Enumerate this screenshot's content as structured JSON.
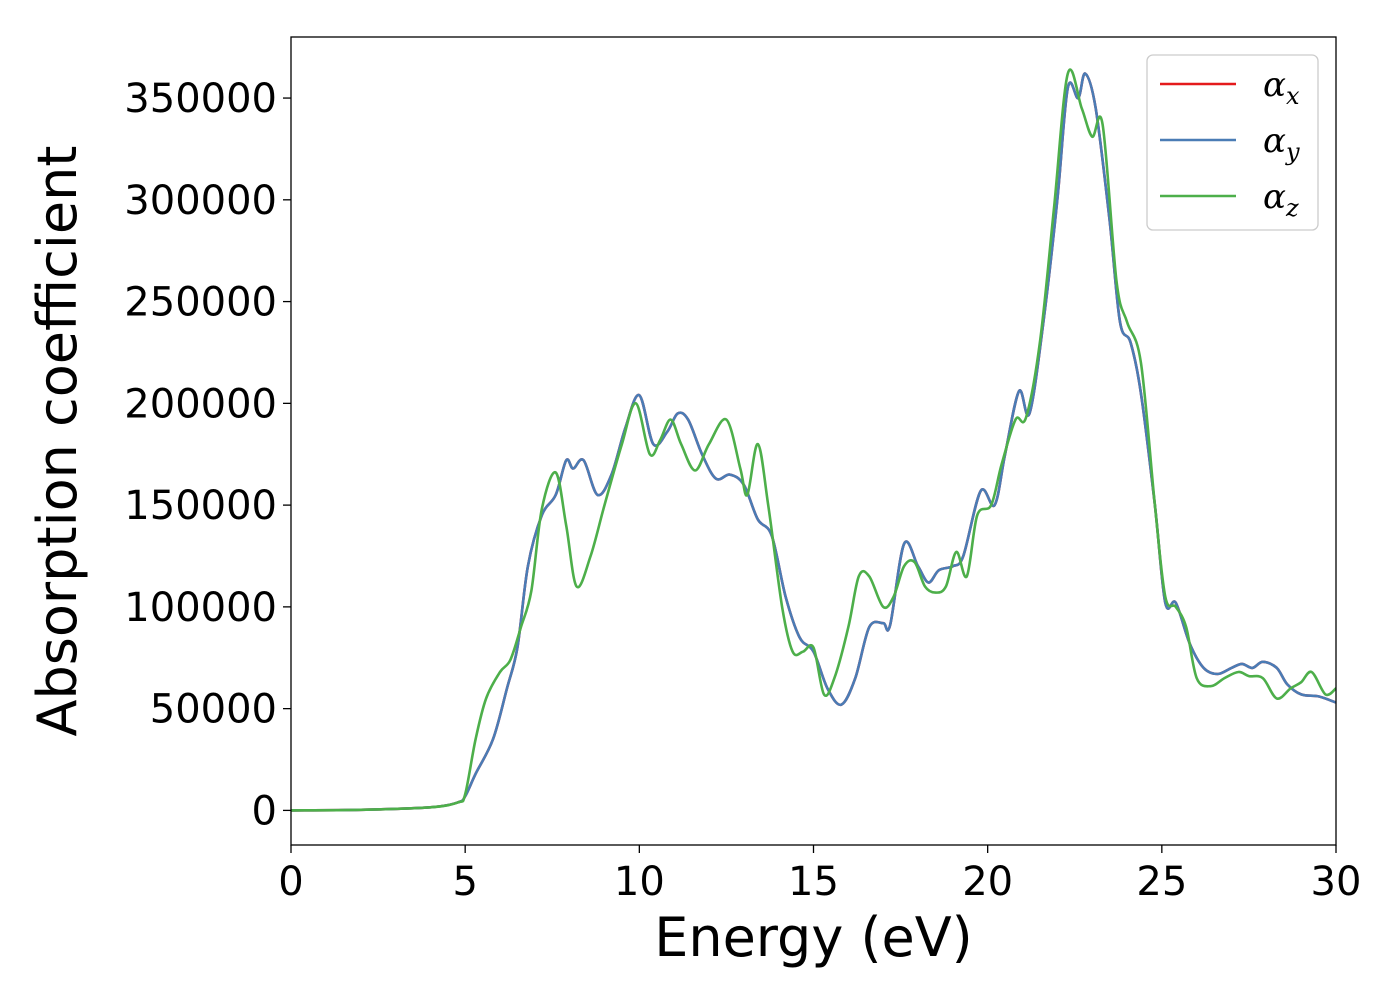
{
  "chart_data": {
    "type": "line",
    "title": "",
    "xlabel": "Energy (eV)",
    "ylabel": "Absorption coefficient",
    "xlim": [
      0,
      30
    ],
    "ylim": [
      -17000,
      380000
    ],
    "xticks": [
      0,
      5,
      10,
      15,
      20,
      25,
      30
    ],
    "xtick_labels": [
      "0",
      "5",
      "10",
      "15",
      "20",
      "25",
      "30"
    ],
    "yticks": [
      0,
      50000,
      100000,
      150000,
      200000,
      250000,
      300000,
      350000
    ],
    "ytick_labels": [
      "0",
      "50000",
      "100000",
      "150000",
      "200000",
      "250000",
      "300000",
      "350000"
    ],
    "grid": false,
    "legend_position": "top-right",
    "series": [
      {
        "name": "αx",
        "legend_symbol": "α",
        "legend_subscript": "x",
        "color": "#e41a1c",
        "points": [
          [
            0,
            0
          ],
          [
            2,
            300
          ],
          [
            4,
            1500
          ],
          [
            4.8,
            4000
          ],
          [
            5.0,
            7000
          ],
          [
            5.3,
            18000
          ],
          [
            5.8,
            35000
          ],
          [
            6.2,
            60000
          ],
          [
            6.5,
            80000
          ],
          [
            6.8,
            120000
          ],
          [
            7.2,
            145000
          ],
          [
            7.6,
            155000
          ],
          [
            7.9,
            172000
          ],
          [
            8.1,
            168000
          ],
          [
            8.4,
            172000
          ],
          [
            8.8,
            155000
          ],
          [
            9.2,
            165000
          ],
          [
            9.6,
            188000
          ],
          [
            10.0,
            204000
          ],
          [
            10.4,
            180000
          ],
          [
            10.8,
            186000
          ],
          [
            11.1,
            195000
          ],
          [
            11.4,
            192000
          ],
          [
            11.8,
            175000
          ],
          [
            12.2,
            163000
          ],
          [
            12.6,
            165000
          ],
          [
            13.0,
            160000
          ],
          [
            13.4,
            143000
          ],
          [
            13.8,
            135000
          ],
          [
            14.2,
            105000
          ],
          [
            14.6,
            85000
          ],
          [
            15.0,
            78000
          ],
          [
            15.4,
            60000
          ],
          [
            15.8,
            52000
          ],
          [
            16.2,
            65000
          ],
          [
            16.6,
            90000
          ],
          [
            17.0,
            92000
          ],
          [
            17.2,
            91000
          ],
          [
            17.6,
            131000
          ],
          [
            18.0,
            120000
          ],
          [
            18.3,
            112000
          ],
          [
            18.6,
            118000
          ],
          [
            19.0,
            120000
          ],
          [
            19.3,
            125000
          ],
          [
            19.8,
            157000
          ],
          [
            20.2,
            150000
          ],
          [
            20.5,
            175000
          ],
          [
            20.9,
            206000
          ],
          [
            21.2,
            195000
          ],
          [
            21.6,
            240000
          ],
          [
            22.0,
            300000
          ],
          [
            22.3,
            355000
          ],
          [
            22.6,
            350000
          ],
          [
            22.8,
            362000
          ],
          [
            23.1,
            345000
          ],
          [
            23.5,
            290000
          ],
          [
            23.8,
            240000
          ],
          [
            24.1,
            230000
          ],
          [
            24.4,
            205000
          ],
          [
            24.8,
            150000
          ],
          [
            25.1,
            102000
          ],
          [
            25.4,
            102000
          ],
          [
            25.8,
            82000
          ],
          [
            26.2,
            70000
          ],
          [
            26.6,
            67000
          ],
          [
            27.0,
            70000
          ],
          [
            27.3,
            72000
          ],
          [
            27.6,
            70000
          ],
          [
            27.9,
            73000
          ],
          [
            28.3,
            70000
          ],
          [
            28.6,
            62000
          ],
          [
            29.0,
            57000
          ],
          [
            29.5,
            56000
          ],
          [
            30.0,
            53000
          ]
        ]
      },
      {
        "name": "αy",
        "legend_symbol": "α",
        "legend_subscript": "y",
        "color": "#4a7cb5",
        "points": [
          [
            0,
            0
          ],
          [
            2,
            300
          ],
          [
            4,
            1500
          ],
          [
            4.8,
            4000
          ],
          [
            5.0,
            7000
          ],
          [
            5.3,
            18000
          ],
          [
            5.8,
            35000
          ],
          [
            6.2,
            60000
          ],
          [
            6.5,
            80000
          ],
          [
            6.8,
            120000
          ],
          [
            7.2,
            145000
          ],
          [
            7.6,
            155000
          ],
          [
            7.9,
            172000
          ],
          [
            8.1,
            168000
          ],
          [
            8.4,
            172000
          ],
          [
            8.8,
            155000
          ],
          [
            9.2,
            165000
          ],
          [
            9.6,
            188000
          ],
          [
            10.0,
            204000
          ],
          [
            10.4,
            180000
          ],
          [
            10.8,
            186000
          ],
          [
            11.1,
            195000
          ],
          [
            11.4,
            192000
          ],
          [
            11.8,
            175000
          ],
          [
            12.2,
            163000
          ],
          [
            12.6,
            165000
          ],
          [
            13.0,
            160000
          ],
          [
            13.4,
            143000
          ],
          [
            13.8,
            135000
          ],
          [
            14.2,
            105000
          ],
          [
            14.6,
            85000
          ],
          [
            15.0,
            78000
          ],
          [
            15.4,
            60000
          ],
          [
            15.8,
            52000
          ],
          [
            16.2,
            65000
          ],
          [
            16.6,
            90000
          ],
          [
            17.0,
            92000
          ],
          [
            17.2,
            91000
          ],
          [
            17.6,
            131000
          ],
          [
            18.0,
            120000
          ],
          [
            18.3,
            112000
          ],
          [
            18.6,
            118000
          ],
          [
            19.0,
            120000
          ],
          [
            19.3,
            125000
          ],
          [
            19.8,
            157000
          ],
          [
            20.2,
            150000
          ],
          [
            20.5,
            175000
          ],
          [
            20.9,
            206000
          ],
          [
            21.2,
            195000
          ],
          [
            21.6,
            240000
          ],
          [
            22.0,
            300000
          ],
          [
            22.3,
            355000
          ],
          [
            22.6,
            350000
          ],
          [
            22.8,
            362000
          ],
          [
            23.1,
            345000
          ],
          [
            23.5,
            290000
          ],
          [
            23.8,
            240000
          ],
          [
            24.1,
            230000
          ],
          [
            24.4,
            205000
          ],
          [
            24.8,
            150000
          ],
          [
            25.1,
            102000
          ],
          [
            25.4,
            102000
          ],
          [
            25.8,
            82000
          ],
          [
            26.2,
            70000
          ],
          [
            26.6,
            67000
          ],
          [
            27.0,
            70000
          ],
          [
            27.3,
            72000
          ],
          [
            27.6,
            70000
          ],
          [
            27.9,
            73000
          ],
          [
            28.3,
            70000
          ],
          [
            28.6,
            62000
          ],
          [
            29.0,
            57000
          ],
          [
            29.5,
            56000
          ],
          [
            30.0,
            53000
          ]
        ]
      },
      {
        "name": "αz",
        "legend_symbol": "α",
        "legend_subscript": "z",
        "color": "#4daf4a",
        "points": [
          [
            0,
            0
          ],
          [
            2,
            300
          ],
          [
            4,
            1500
          ],
          [
            4.8,
            4000
          ],
          [
            5.0,
            8000
          ],
          [
            5.3,
            35000
          ],
          [
            5.6,
            55000
          ],
          [
            6.0,
            68000
          ],
          [
            6.3,
            74000
          ],
          [
            6.6,
            90000
          ],
          [
            6.9,
            108000
          ],
          [
            7.2,
            148000
          ],
          [
            7.6,
            166000
          ],
          [
            7.9,
            140000
          ],
          [
            8.2,
            110000
          ],
          [
            8.6,
            125000
          ],
          [
            9.0,
            150000
          ],
          [
            9.5,
            180000
          ],
          [
            9.9,
            200000
          ],
          [
            10.3,
            175000
          ],
          [
            10.6,
            182000
          ],
          [
            10.9,
            192000
          ],
          [
            11.2,
            180000
          ],
          [
            11.6,
            167000
          ],
          [
            12.0,
            180000
          ],
          [
            12.5,
            192000
          ],
          [
            12.9,
            168000
          ],
          [
            13.1,
            155000
          ],
          [
            13.4,
            180000
          ],
          [
            13.7,
            150000
          ],
          [
            14.1,
            100000
          ],
          [
            14.4,
            78000
          ],
          [
            14.7,
            78000
          ],
          [
            15.0,
            80000
          ],
          [
            15.3,
            57000
          ],
          [
            15.6,
            65000
          ],
          [
            16.0,
            90000
          ],
          [
            16.3,
            115000
          ],
          [
            16.6,
            115000
          ],
          [
            17.0,
            100000
          ],
          [
            17.3,
            105000
          ],
          [
            17.6,
            120000
          ],
          [
            17.9,
            122000
          ],
          [
            18.2,
            110000
          ],
          [
            18.5,
            107000
          ],
          [
            18.8,
            110000
          ],
          [
            19.1,
            127000
          ],
          [
            19.4,
            115000
          ],
          [
            19.7,
            145000
          ],
          [
            20.1,
            150000
          ],
          [
            20.4,
            170000
          ],
          [
            20.8,
            192000
          ],
          [
            21.1,
            193000
          ],
          [
            21.5,
            230000
          ],
          [
            21.9,
            295000
          ],
          [
            22.3,
            362000
          ],
          [
            22.7,
            345000
          ],
          [
            23.0,
            331000
          ],
          [
            23.3,
            337000
          ],
          [
            23.7,
            260000
          ],
          [
            24.0,
            240000
          ],
          [
            24.4,
            220000
          ],
          [
            24.8,
            150000
          ],
          [
            25.1,
            105000
          ],
          [
            25.4,
            100000
          ],
          [
            25.7,
            90000
          ],
          [
            26.0,
            65000
          ],
          [
            26.4,
            61000
          ],
          [
            26.8,
            65000
          ],
          [
            27.2,
            68000
          ],
          [
            27.5,
            66000
          ],
          [
            27.9,
            65000
          ],
          [
            28.3,
            55000
          ],
          [
            28.7,
            60000
          ],
          [
            29.0,
            63000
          ],
          [
            29.3,
            68000
          ],
          [
            29.7,
            57000
          ],
          [
            30.0,
            60000
          ]
        ]
      }
    ]
  }
}
